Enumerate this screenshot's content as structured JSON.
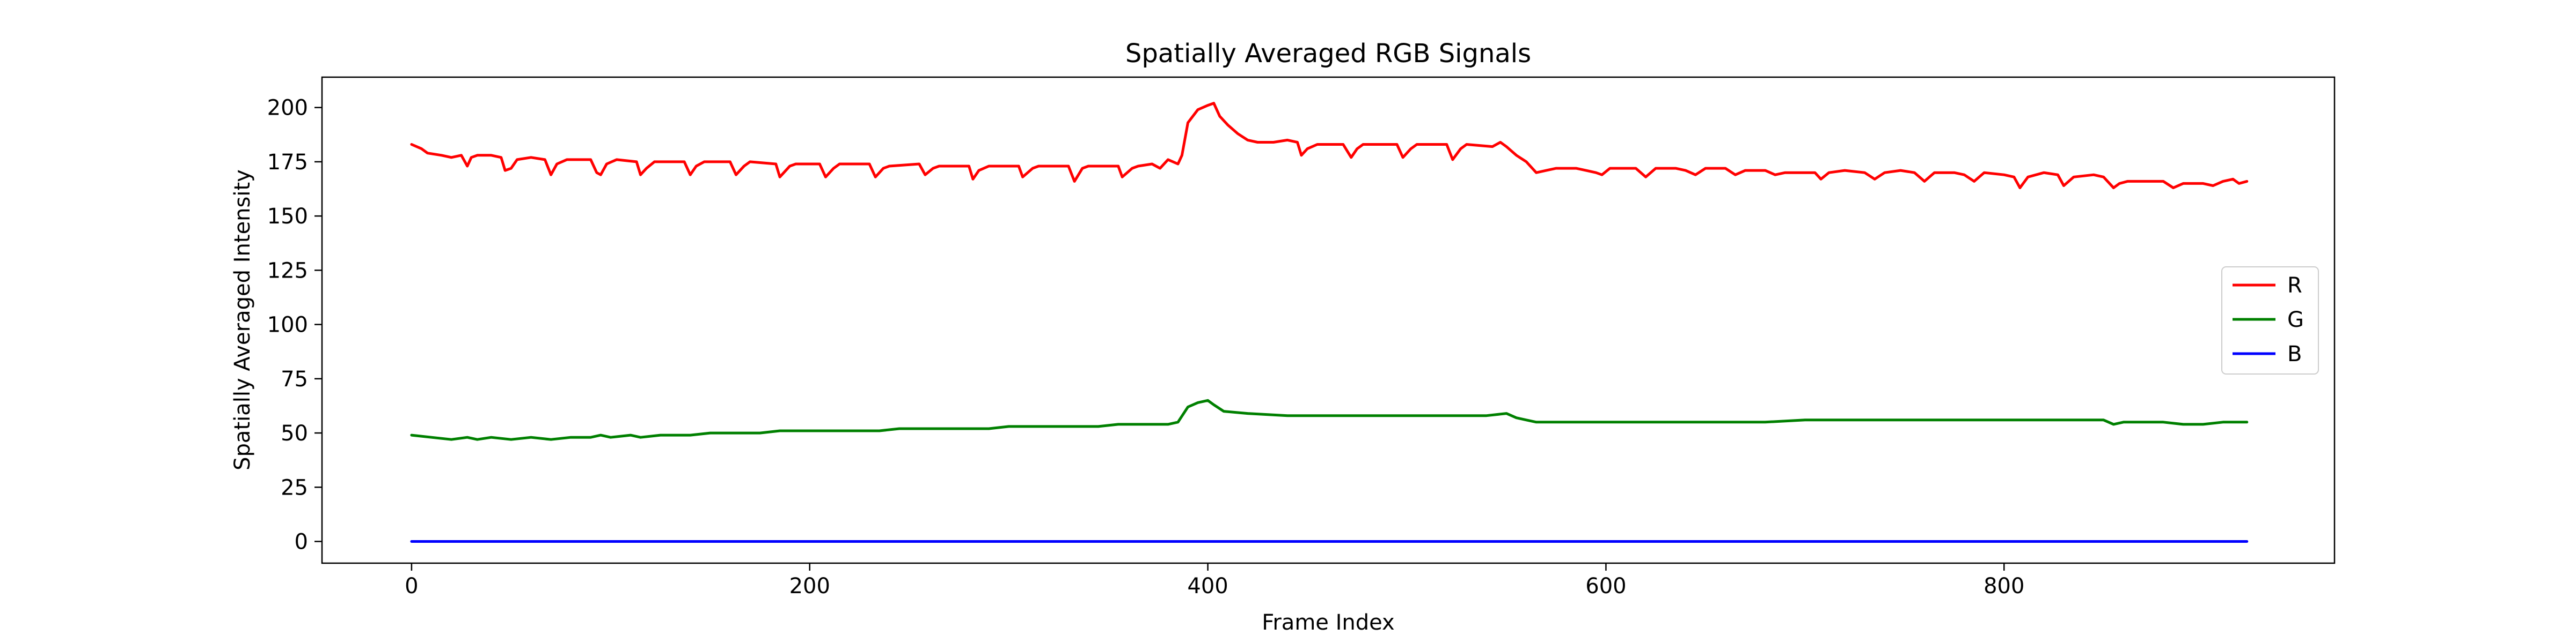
{
  "chart_data": {
    "type": "line",
    "title": "Spatially Averaged RGB Signals",
    "xlabel": "Frame Index",
    "ylabel": "Spatially Averaged Intensity",
    "xlim": [
      -45,
      966
    ],
    "ylim": [
      -10,
      214
    ],
    "xticks": [
      0,
      200,
      400,
      600,
      800
    ],
    "yticks": [
      0,
      25,
      50,
      75,
      100,
      125,
      150,
      175,
      200
    ],
    "grid": false,
    "legend_position": "center-right",
    "series": [
      {
        "name": "R",
        "color": "#ff0000",
        "points": [
          [
            0,
            183
          ],
          [
            5,
            181
          ],
          [
            8,
            179
          ],
          [
            15,
            178
          ],
          [
            20,
            177
          ],
          [
            25,
            178
          ],
          [
            28,
            173
          ],
          [
            30,
            177
          ],
          [
            33,
            178
          ],
          [
            40,
            178
          ],
          [
            45,
            177
          ],
          [
            47,
            171
          ],
          [
            50,
            172
          ],
          [
            53,
            176
          ],
          [
            60,
            177
          ],
          [
            67,
            176
          ],
          [
            70,
            169
          ],
          [
            73,
            174
          ],
          [
            78,
            176
          ],
          [
            90,
            176
          ],
          [
            93,
            170
          ],
          [
            95,
            169
          ],
          [
            98,
            174
          ],
          [
            103,
            176
          ],
          [
            113,
            175
          ],
          [
            115,
            169
          ],
          [
            118,
            172
          ],
          [
            122,
            175
          ],
          [
            137,
            175
          ],
          [
            140,
            169
          ],
          [
            143,
            173
          ],
          [
            147,
            175
          ],
          [
            160,
            175
          ],
          [
            163,
            169
          ],
          [
            167,
            173
          ],
          [
            170,
            175
          ],
          [
            183,
            174
          ],
          [
            185,
            168
          ],
          [
            190,
            173
          ],
          [
            193,
            174
          ],
          [
            205,
            174
          ],
          [
            208,
            168
          ],
          [
            212,
            172
          ],
          [
            215,
            174
          ],
          [
            230,
            174
          ],
          [
            233,
            168
          ],
          [
            237,
            172
          ],
          [
            240,
            173
          ],
          [
            255,
            174
          ],
          [
            258,
            169
          ],
          [
            262,
            172
          ],
          [
            265,
            173
          ],
          [
            280,
            173
          ],
          [
            282,
            167
          ],
          [
            285,
            171
          ],
          [
            290,
            173
          ],
          [
            305,
            173
          ],
          [
            307,
            168
          ],
          [
            312,
            172
          ],
          [
            315,
            173
          ],
          [
            330,
            173
          ],
          [
            333,
            166
          ],
          [
            337,
            172
          ],
          [
            340,
            173
          ],
          [
            355,
            173
          ],
          [
            357,
            168
          ],
          [
            362,
            172
          ],
          [
            365,
            173
          ],
          [
            372,
            174
          ],
          [
            376,
            172
          ],
          [
            380,
            176
          ],
          [
            385,
            174
          ],
          [
            387,
            178
          ],
          [
            390,
            193
          ],
          [
            395,
            199
          ],
          [
            400,
            201
          ],
          [
            403,
            202
          ],
          [
            406,
            196
          ],
          [
            410,
            192
          ],
          [
            415,
            188
          ],
          [
            420,
            185
          ],
          [
            425,
            184
          ],
          [
            433,
            184
          ],
          [
            440,
            185
          ],
          [
            445,
            184
          ],
          [
            447,
            178
          ],
          [
            450,
            181
          ],
          [
            455,
            183
          ],
          [
            468,
            183
          ],
          [
            472,
            177
          ],
          [
            475,
            181
          ],
          [
            478,
            183
          ],
          [
            495,
            183
          ],
          [
            498,
            177
          ],
          [
            502,
            181
          ],
          [
            505,
            183
          ],
          [
            520,
            183
          ],
          [
            523,
            176
          ],
          [
            527,
            181
          ],
          [
            530,
            183
          ],
          [
            543,
            182
          ],
          [
            547,
            184
          ],
          [
            550,
            182
          ],
          [
            555,
            178
          ],
          [
            560,
            175
          ],
          [
            565,
            170
          ],
          [
            570,
            171
          ],
          [
            575,
            172
          ],
          [
            585,
            172
          ],
          [
            590,
            171
          ],
          [
            595,
            170
          ],
          [
            598,
            169
          ],
          [
            602,
            172
          ],
          [
            610,
            172
          ],
          [
            615,
            172
          ],
          [
            620,
            168
          ],
          [
            625,
            172
          ],
          [
            635,
            172
          ],
          [
            640,
            171
          ],
          [
            645,
            169
          ],
          [
            650,
            172
          ],
          [
            660,
            172
          ],
          [
            665,
            169
          ],
          [
            670,
            171
          ],
          [
            680,
            171
          ],
          [
            685,
            169
          ],
          [
            690,
            170
          ],
          [
            705,
            170
          ],
          [
            708,
            167
          ],
          [
            712,
            170
          ],
          [
            720,
            171
          ],
          [
            730,
            170
          ],
          [
            735,
            167
          ],
          [
            740,
            170
          ],
          [
            748,
            171
          ],
          [
            755,
            170
          ],
          [
            760,
            166
          ],
          [
            765,
            170
          ],
          [
            775,
            170
          ],
          [
            780,
            169
          ],
          [
            785,
            166
          ],
          [
            790,
            170
          ],
          [
            800,
            169
          ],
          [
            805,
            168
          ],
          [
            808,
            163
          ],
          [
            812,
            168
          ],
          [
            820,
            170
          ],
          [
            827,
            169
          ],
          [
            830,
            164
          ],
          [
            835,
            168
          ],
          [
            845,
            169
          ],
          [
            850,
            168
          ],
          [
            855,
            163
          ],
          [
            858,
            165
          ],
          [
            862,
            166
          ],
          [
            870,
            166
          ],
          [
            880,
            166
          ],
          [
            885,
            163
          ],
          [
            890,
            165
          ],
          [
            900,
            165
          ],
          [
            905,
            164
          ],
          [
            910,
            166
          ],
          [
            915,
            167
          ],
          [
            918,
            165
          ],
          [
            922,
            166
          ]
        ]
      },
      {
        "name": "G",
        "color": "#008000",
        "points": [
          [
            0,
            49
          ],
          [
            10,
            48
          ],
          [
            20,
            47
          ],
          [
            28,
            48
          ],
          [
            33,
            47
          ],
          [
            40,
            48
          ],
          [
            50,
            47
          ],
          [
            60,
            48
          ],
          [
            70,
            47
          ],
          [
            80,
            48
          ],
          [
            90,
            48
          ],
          [
            95,
            49
          ],
          [
            100,
            48
          ],
          [
            110,
            49
          ],
          [
            115,
            48
          ],
          [
            125,
            49
          ],
          [
            140,
            49
          ],
          [
            150,
            50
          ],
          [
            160,
            50
          ],
          [
            175,
            50
          ],
          [
            185,
            51
          ],
          [
            200,
            51
          ],
          [
            210,
            51
          ],
          [
            220,
            51
          ],
          [
            235,
            51
          ],
          [
            245,
            52
          ],
          [
            260,
            52
          ],
          [
            270,
            52
          ],
          [
            280,
            52
          ],
          [
            290,
            52
          ],
          [
            300,
            53
          ],
          [
            310,
            53
          ],
          [
            320,
            53
          ],
          [
            335,
            53
          ],
          [
            345,
            53
          ],
          [
            355,
            54
          ],
          [
            370,
            54
          ],
          [
            380,
            54
          ],
          [
            385,
            55
          ],
          [
            390,
            62
          ],
          [
            395,
            64
          ],
          [
            400,
            65
          ],
          [
            403,
            63
          ],
          [
            408,
            60
          ],
          [
            420,
            59
          ],
          [
            440,
            58
          ],
          [
            460,
            58
          ],
          [
            480,
            58
          ],
          [
            500,
            58
          ],
          [
            520,
            58
          ],
          [
            540,
            58
          ],
          [
            550,
            59
          ],
          [
            555,
            57
          ],
          [
            560,
            56
          ],
          [
            565,
            55
          ],
          [
            580,
            55
          ],
          [
            600,
            55
          ],
          [
            620,
            55
          ],
          [
            640,
            55
          ],
          [
            660,
            55
          ],
          [
            680,
            55
          ],
          [
            700,
            56
          ],
          [
            720,
            56
          ],
          [
            740,
            56
          ],
          [
            760,
            56
          ],
          [
            780,
            56
          ],
          [
            800,
            56
          ],
          [
            820,
            56
          ],
          [
            840,
            56
          ],
          [
            850,
            56
          ],
          [
            855,
            54
          ],
          [
            860,
            55
          ],
          [
            880,
            55
          ],
          [
            890,
            54
          ],
          [
            900,
            54
          ],
          [
            910,
            55
          ],
          [
            922,
            55
          ]
        ]
      },
      {
        "name": "B",
        "color": "#0000ff",
        "points": [
          [
            0,
            0
          ],
          [
            922,
            0
          ]
        ]
      }
    ]
  }
}
